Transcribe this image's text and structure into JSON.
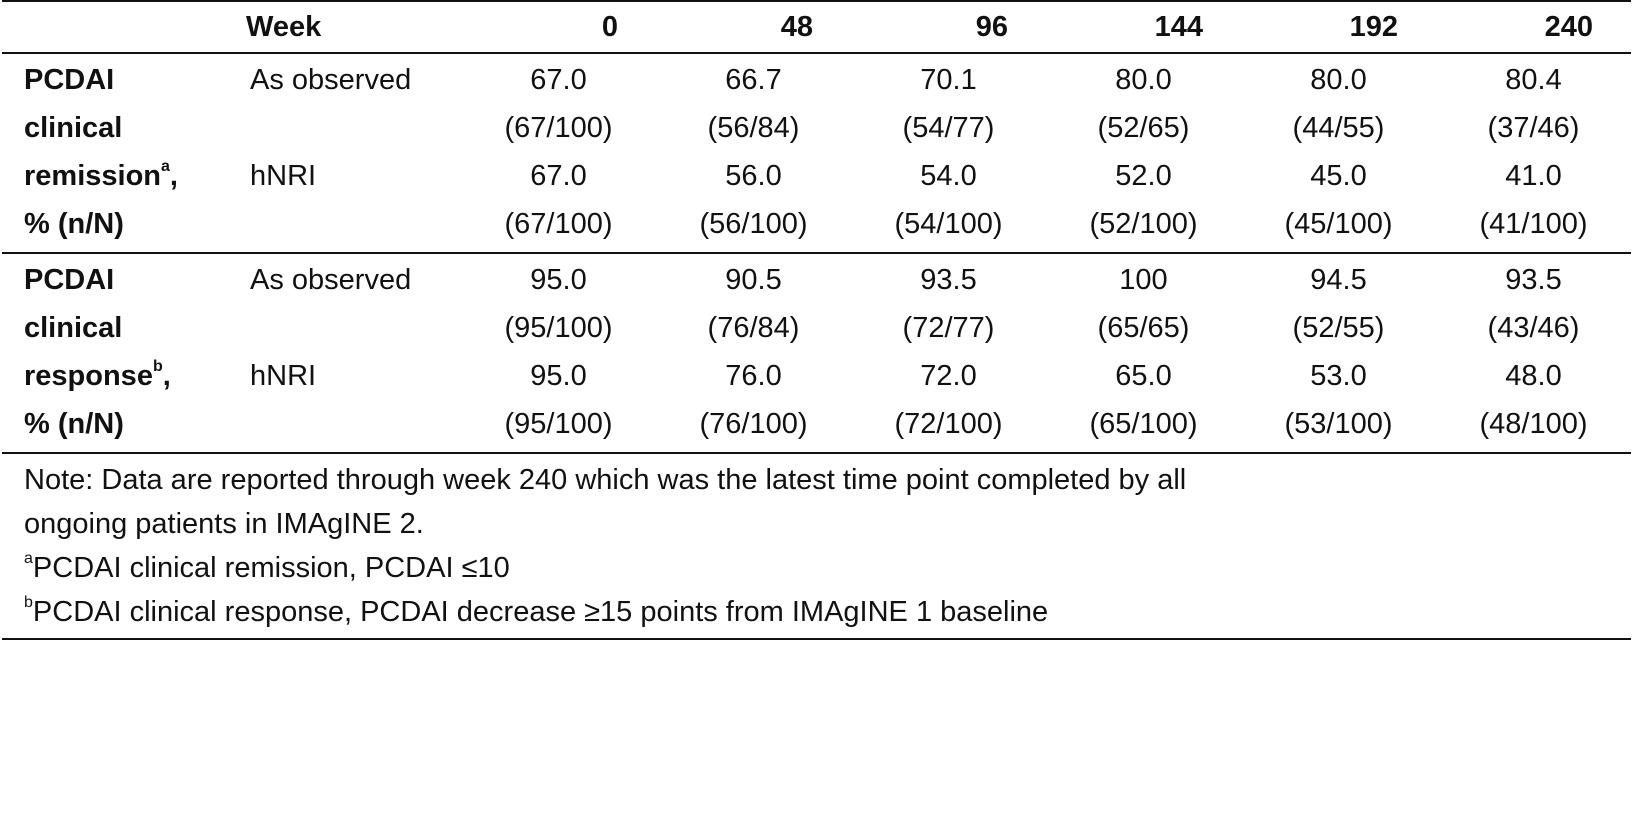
{
  "header": {
    "week_label": "Week",
    "weeks": [
      "0",
      "48",
      "96",
      "144",
      "192",
      "240"
    ]
  },
  "groups": [
    {
      "measure_lines": [
        "PCDAI",
        "clinical"
      ],
      "measure_word": "remission",
      "measure_sup": "a",
      "measure_suffix": ",",
      "measure_last": "% (n/N)",
      "rows": [
        {
          "method": "As observed",
          "pct": [
            "67.0",
            "66.7",
            "70.1",
            "80.0",
            "80.0",
            "80.4"
          ],
          "frac": [
            "(67/100)",
            "(56/84)",
            "(54/77)",
            "(52/65)",
            "(44/55)",
            "(37/46)"
          ]
        },
        {
          "method": "hNRI",
          "pct": [
            "67.0",
            "56.0",
            "54.0",
            "52.0",
            "45.0",
            "41.0"
          ],
          "frac": [
            "(67/100)",
            "(56/100)",
            "(54/100)",
            "(52/100)",
            "(45/100)",
            "(41/100)"
          ]
        }
      ]
    },
    {
      "measure_lines": [
        "PCDAI",
        "clinical"
      ],
      "measure_word": "response",
      "measure_sup": "b",
      "measure_suffix": ",",
      "measure_last": "% (n/N)",
      "rows": [
        {
          "method": "As observed",
          "pct": [
            "95.0",
            "90.5",
            "93.5",
            "100",
            "94.5",
            "93.5"
          ],
          "frac": [
            "(95/100)",
            "(76/84)",
            "(72/77)",
            "(65/65)",
            "(52/55)",
            "(43/46)"
          ]
        },
        {
          "method": "hNRI",
          "pct": [
            "95.0",
            "76.0",
            "72.0",
            "65.0",
            "53.0",
            "48.0"
          ],
          "frac": [
            "(95/100)",
            "(76/100)",
            "(72/100)",
            "(65/100)",
            "(53/100)",
            "(48/100)"
          ]
        }
      ]
    }
  ],
  "notes": {
    "line1": "Note: Data are reported through week 240 which was the latest time point completed by all",
    "line2": "ongoing patients in IMAgINE 2.",
    "footnote_a_marker": "a",
    "footnote_a": "PCDAI clinical remission, PCDAI ≤10",
    "footnote_b_marker": "b",
    "footnote_b": "PCDAI clinical response, PCDAI decrease ≥15 points from IMAgINE 1 baseline"
  }
}
